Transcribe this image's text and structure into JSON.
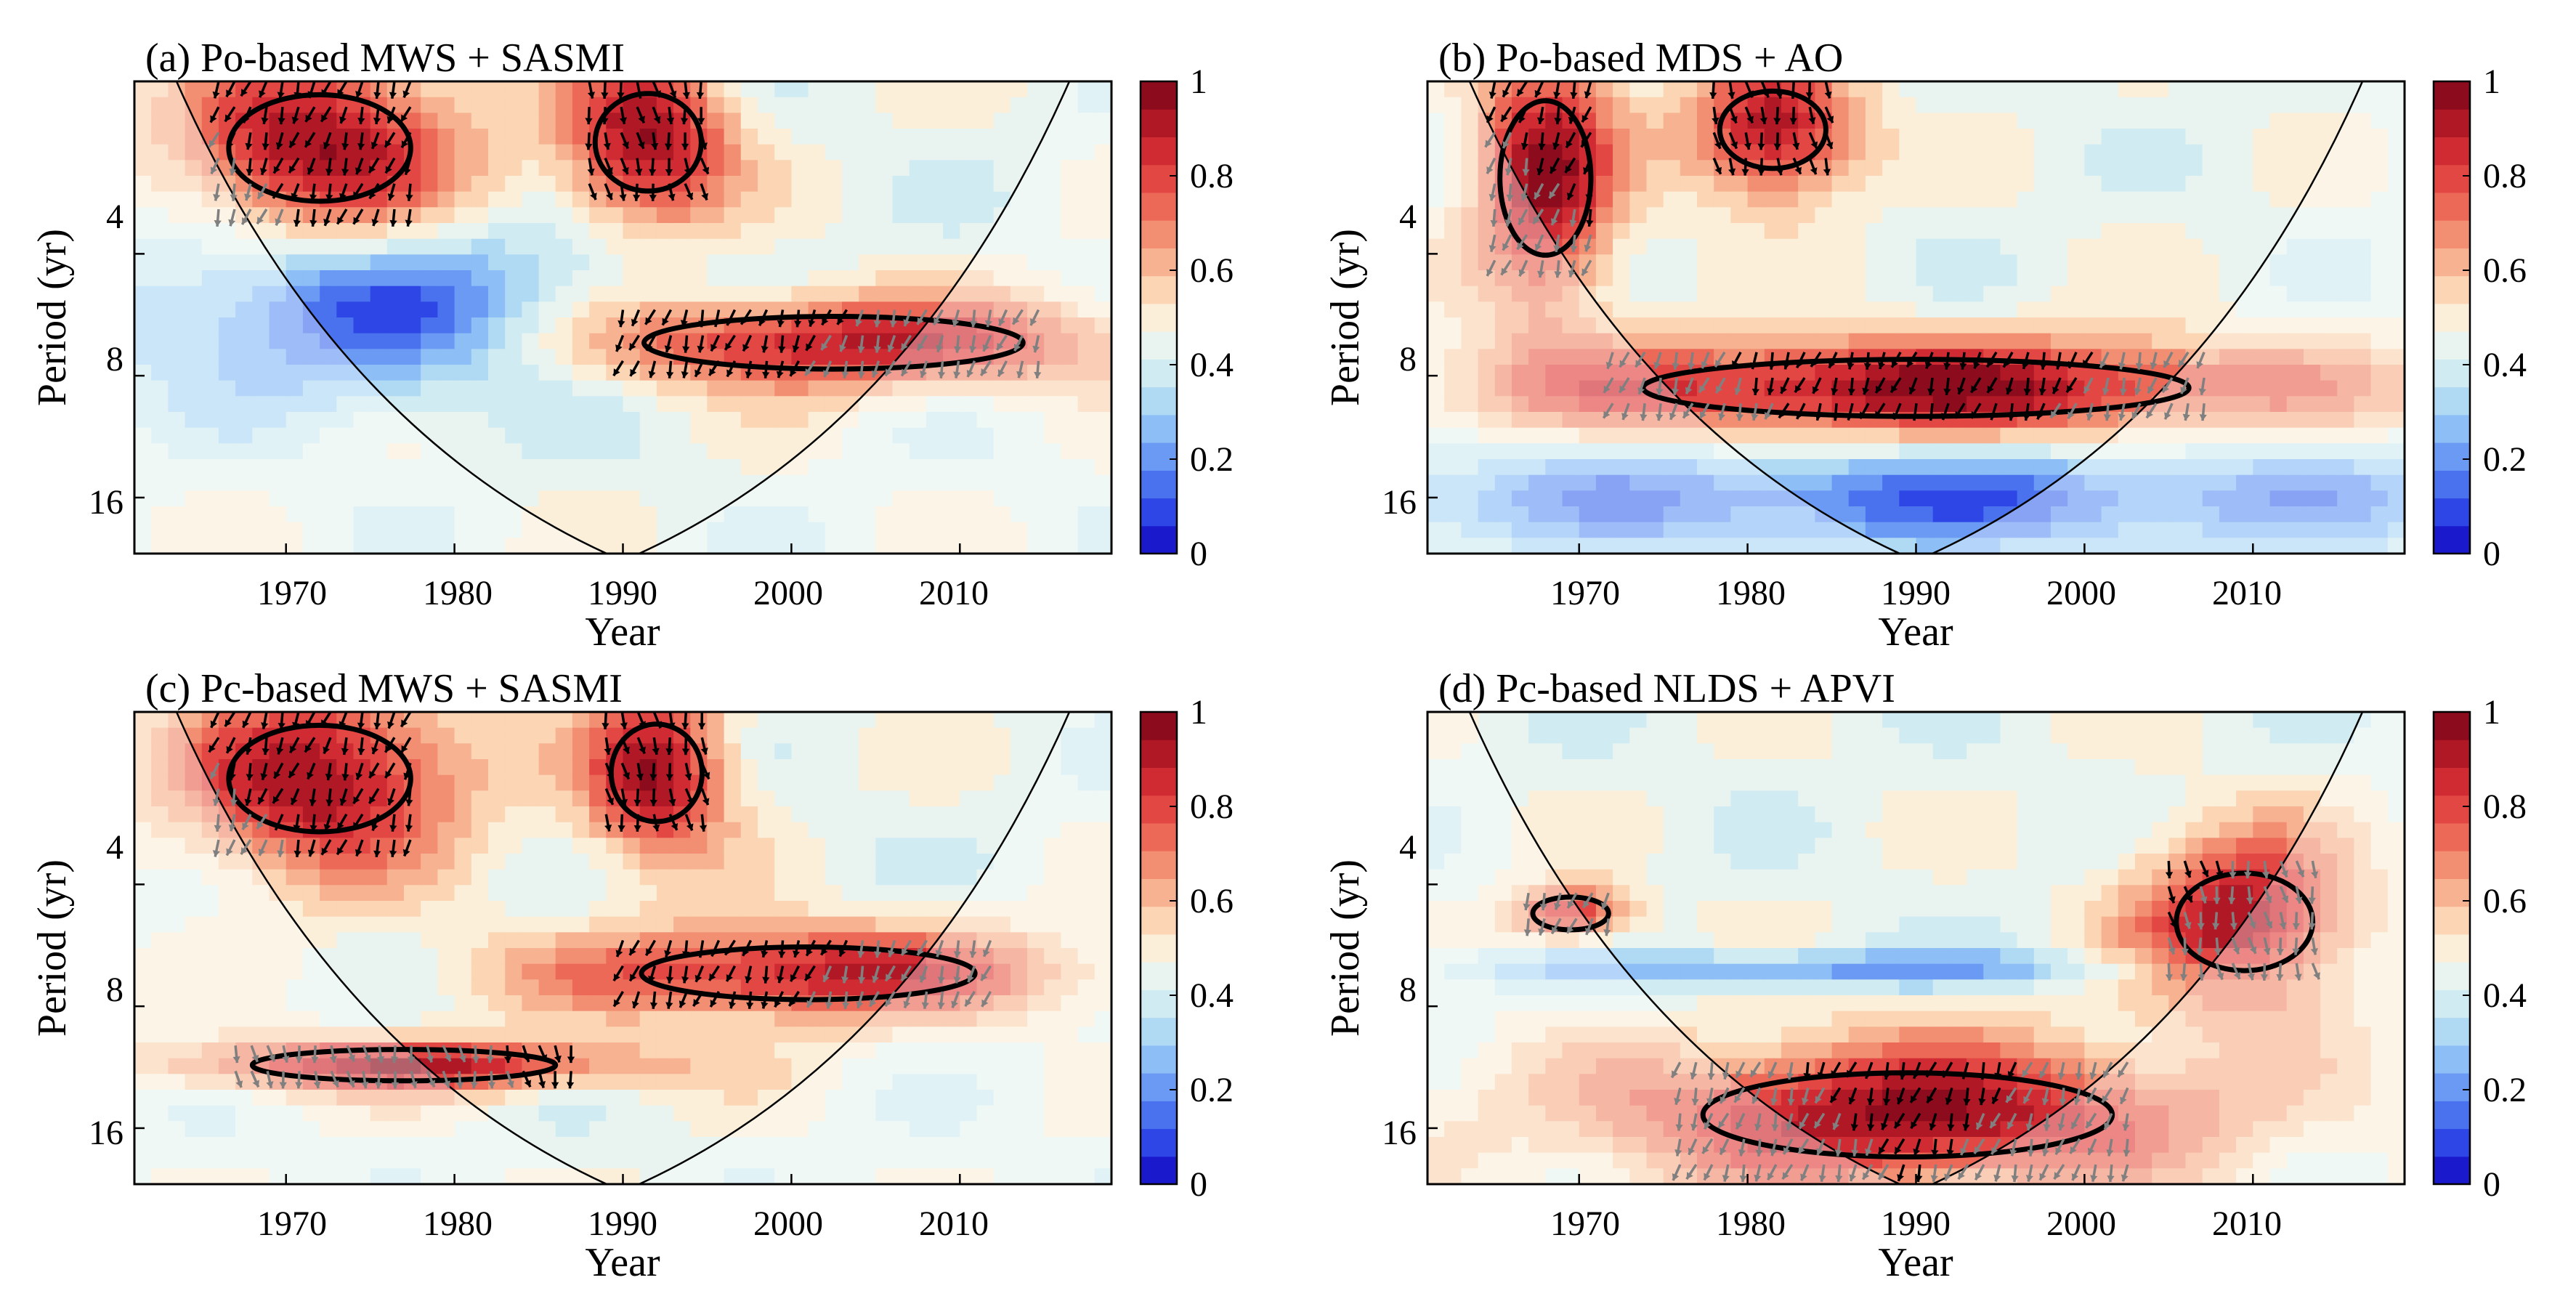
{
  "figure": {
    "colorbar_ticks": [
      "0",
      "0.2",
      "0.4",
      "0.6",
      "0.8",
      "1"
    ],
    "colorbar_colors": [
      "#1a1acc",
      "#2e46e6",
      "#4a72ef",
      "#6b9af4",
      "#8dbef6",
      "#b0d9f4",
      "#d0ecf2",
      "#e9f4f0",
      "#fbefd9",
      "#fbd5b4",
      "#f7b391",
      "#f28f73",
      "#ec6958",
      "#e34744",
      "#d02b33",
      "#b11826",
      "#8c0b1c"
    ],
    "cone_color": "#000000",
    "sig_contour_color": "#000000",
    "arrow_in_color": "#000000",
    "arrow_out_color": "#808080"
  },
  "chart_data": [
    {
      "type": "heatmap",
      "title": "(a) Po-based MWS + SASMI",
      "xlabel": "Year",
      "ylabel": "Period (yr)",
      "xlim": [
        1961,
        2019
      ],
      "ylim": [
        1.5,
        22
      ],
      "xticks": [
        "1970",
        "1980",
        "1990",
        "2000",
        "2010"
      ],
      "yticks": [
        "4",
        "8",
        "16"
      ],
      "colorbar_range": [
        0,
        1
      ],
      "cone_apex_year": 1990,
      "coherence_regions": [
        {
          "name": "short-period 1970s",
          "year_range": [
            1966,
            1978
          ],
          "period_range": [
            1.5,
            3.2
          ],
          "coherence": 0.95
        },
        {
          "name": "short-period early 1990s",
          "year_range": [
            1988,
            1995
          ],
          "period_range": [
            1.5,
            3.0
          ],
          "coherence": 0.95
        },
        {
          "name": "4-8 yr band 1990s-2010s",
          "year_range": [
            1990,
            2015
          ],
          "period_range": [
            5.5,
            8.0
          ],
          "coherence": 0.9
        },
        {
          "name": "low coherence 4-8 yr 1960s-1980s",
          "year_range": [
            1965,
            1985
          ],
          "period_range": [
            4.0,
            8.0
          ],
          "coherence": 0.1
        }
      ]
    },
    {
      "type": "heatmap",
      "title": "(b) Po-based MDS + AO",
      "xlabel": "Year",
      "ylabel": "Period (yr)",
      "xlim": [
        1961,
        2019
      ],
      "ylim": [
        1.5,
        22
      ],
      "xticks": [
        "1970",
        "1980",
        "1990",
        "2000",
        "2010"
      ],
      "yticks": [
        "4",
        "8",
        "16"
      ],
      "colorbar_range": [
        0,
        1
      ],
      "cone_apex_year": 1990,
      "coherence_regions": [
        {
          "name": "short-period late 1960s",
          "year_range": [
            1965,
            1971
          ],
          "period_range": [
            1.5,
            4.5
          ],
          "coherence": 0.95
        },
        {
          "name": "short-period early 1980s",
          "year_range": [
            1978,
            1985
          ],
          "period_range": [
            1.5,
            2.6
          ],
          "coherence": 0.95
        },
        {
          "name": "8-10 yr band",
          "year_range": [
            1972,
            2008
          ],
          "period_range": [
            7.0,
            10.5
          ],
          "coherence": 0.95
        },
        {
          "name": "low coherence 16 yr",
          "year_range": [
            1961,
            2019
          ],
          "period_range": [
            13,
            20
          ],
          "coherence": 0.15
        }
      ]
    },
    {
      "type": "heatmap",
      "title": "(c) Pc-based MWS + SASMI",
      "xlabel": "Year",
      "ylabel": "Period (yr)",
      "xlim": [
        1961,
        2019
      ],
      "ylim": [
        1.5,
        22
      ],
      "xticks": [
        "1970",
        "1980",
        "1990",
        "2000",
        "2010"
      ],
      "yticks": [
        "4",
        "8",
        "16"
      ],
      "colorbar_range": [
        0,
        1
      ],
      "cone_apex_year": 1990,
      "coherence_regions": [
        {
          "name": "short-period 1970s",
          "year_range": [
            1966,
            1978
          ],
          "period_range": [
            1.5,
            3.2
          ],
          "coherence": 0.95
        },
        {
          "name": "short-period early 1990s",
          "year_range": [
            1989,
            1995
          ],
          "period_range": [
            1.5,
            3.0
          ],
          "coherence": 0.95
        },
        {
          "name": "6-8 yr band 1990s-2010s",
          "year_range": [
            1990,
            2012
          ],
          "period_range": [
            5.5,
            8.0
          ],
          "coherence": 0.9
        },
        {
          "name": "10-12 yr band 1970s-1980s",
          "year_range": [
            1967,
            1987
          ],
          "period_range": [
            10.0,
            12.5
          ],
          "coherence": 0.9
        }
      ]
    },
    {
      "type": "heatmap",
      "title": "(d) Pc-based NLDS + APVI",
      "xlabel": "Year",
      "ylabel": "Period (yr)",
      "xlim": [
        1961,
        2019
      ],
      "ylim": [
        1.5,
        22
      ],
      "xticks": [
        "1970",
        "1980",
        "1990",
        "2000",
        "2010"
      ],
      "yticks": [
        "4",
        "8",
        "16"
      ],
      "colorbar_range": [
        0,
        1
      ],
      "cone_apex_year": 1990,
      "coherence_regions": [
        {
          "name": "4-5 yr late 1960s",
          "year_range": [
            1967,
            1972
          ],
          "period_range": [
            4.2,
            5.3
          ],
          "coherence": 0.85
        },
        {
          "name": "4-7 yr late 2000s",
          "year_range": [
            2005,
            2014
          ],
          "period_range": [
            3.5,
            7.0
          ],
          "coherence": 0.95
        },
        {
          "name": "12-20 yr 1980s-1990s",
          "year_range": [
            1976,
            2003
          ],
          "period_range": [
            11,
            20
          ],
          "coherence": 0.95
        },
        {
          "name": "low coherence 6 yr band",
          "year_range": [
            1970,
            1998
          ],
          "period_range": [
            6.0,
            7.0
          ],
          "coherence": 0.2
        }
      ]
    }
  ]
}
